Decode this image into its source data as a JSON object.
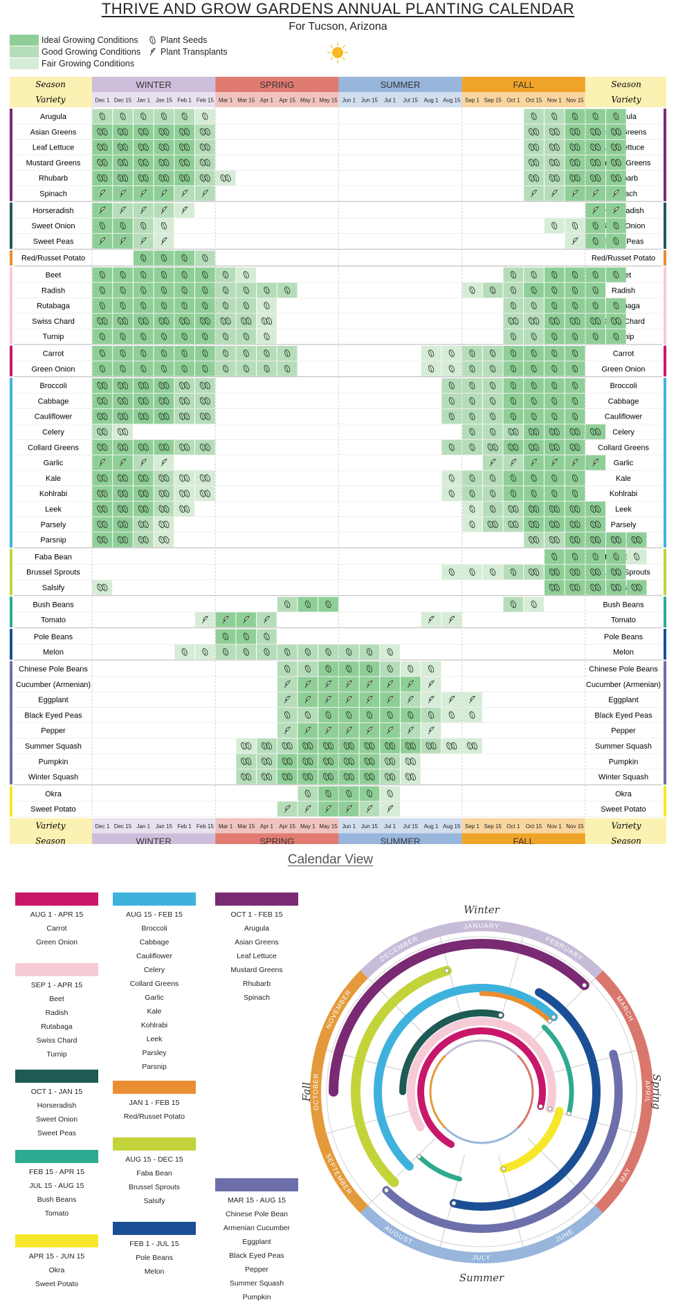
{
  "title": "THRIVE AND GROW GARDENS ANNUAL PLANTING CALENDAR",
  "subtitle": "For Tucson, Arizona",
  "legend": {
    "conditions": [
      {
        "label": "Ideal Growing Conditions",
        "color": "#8fcf97"
      },
      {
        "label": "Good Growing Conditions",
        "color": "#b5ddb9"
      },
      {
        "label": "Fair Growing Conditions",
        "color": "#d7ecd6"
      }
    ],
    "plant_seeds": "Plant Seeds",
    "plant_transplants": "Plant Transplants"
  },
  "header": {
    "season_label": "Season",
    "variety_label": "Variety",
    "seasons": [
      {
        "name": "WINTER",
        "color": "#cdbfdc"
      },
      {
        "name": "SPRING",
        "color": "#e07b70"
      },
      {
        "name": "SUMMER",
        "color": "#98b5dc"
      },
      {
        "name": "FALL",
        "color": "#efa327"
      }
    ],
    "dates": [
      "Dec 1",
      "Dec 15",
      "Jan 1",
      "Jan 15",
      "Feb 1",
      "Feb 15",
      "Mar 1",
      "Mar 15",
      "Apr 1",
      "Apr 15",
      "May 1",
      "May 15",
      "Jun 1",
      "Jun 15",
      "Jul 1",
      "Jul 15",
      "Aug 1",
      "Aug 15",
      "Sep 1",
      "Sep 15",
      "Oct 1",
      "Oct 15",
      "Nov 1",
      "Nov 15"
    ]
  },
  "groups": [
    {
      "color": "#7a2a72",
      "rows": [
        {
          "name": "Arugula",
          "cells": "2s2s2s2s2s3s0000000000000002s2s1s1s1s"
        },
        {
          "name": "Asian Greens",
          "cells": "1d1d1d1d1d2d0000000000000002d2d1d1d1d"
        },
        {
          "name": "Leaf Lettuce",
          "cells": "1d1d1d1d1d2d0000000000000002d2d1d1d1d"
        },
        {
          "name": "Mustard Greens",
          "cells": "1d1d1d1d1d2d0000000000000002d2d1d1d1d"
        },
        {
          "name": "Rhubarb",
          "cells": "1d1d1d1d1d2d3d000000000000002d2d1d1d1d"
        },
        {
          "name": "Spinach",
          "cells": "1t1t1t1t2t2t0000000000000002t2t1t1t1t"
        }
      ]
    },
    {
      "color": "#1f5a55",
      "rows": [
        {
          "name": "Horseradish",
          "cells": "1t2t2t2t3t00000000000000000001t1t"
        },
        {
          "name": "Sweet Onion",
          "cells": "1s1s2s3s0000000000000000003s3s1s1s"
        },
        {
          "name": "Sweet Peas",
          "cells": "1t1t2t3t00000000000000000003t1s1s"
        }
      ]
    },
    {
      "color": "#ea8e33",
      "rows": [
        {
          "name": "Red/Russet Potato",
          "cells": "001s1s1s2s000000000000000000"
        }
      ]
    },
    {
      "color": "#f6cbd6",
      "rows": [
        {
          "name": "Beet",
          "cells": "1s1s1s1s1s1s2s3s0000000000002s2s1s1s1s1s"
        },
        {
          "name": "Radish",
          "cells": "1s1s1s1s1s1s2s2s2s2s000000003s2s2s1s1s1s1s"
        },
        {
          "name": "Rutabaga",
          "cells": "1s1s1s1s1s1s2s2s3s000000000002s2s1s1s1s1s"
        },
        {
          "name": "Swiss Chard",
          "cells": "1d1d1d1d1d1d2d2d3d000000000002d2d1d1d1d1d"
        },
        {
          "name": "Turnip",
          "cells": "1s1s1s1s1s1s2s2s3s000000000002s2s1s1s1s1s"
        }
      ]
    },
    {
      "color": "#c8176a",
      "rows": [
        {
          "name": "Carrot",
          "cells": "1s1s1s1s1s1s2s2s2s2s0000003s3s2s2s1s1s1s1s"
        },
        {
          "name": "Green Onion",
          "cells": "1s1s1s1s1s1s2s2s2s2s0000003s3s2s2s1s1s1s1s"
        }
      ]
    },
    {
      "color": "#3eb2dd",
      "rows": [
        {
          "name": "Broccoli",
          "cells": "1d1d1d1d2d2d000000000002s2s2s1s1s1s1s"
        },
        {
          "name": "Cabbage",
          "cells": "1d1d1d1d2d2d000000000002s2s2s1s1s1s1s"
        },
        {
          "name": "Cauliflower",
          "cells": "1d1d1d1d2d2d000000000002s2s2s1s1s1s1s"
        },
        {
          "name": "Celery",
          "cells": "2d3d00000000000000002s2s2d1d1d1d1d"
        },
        {
          "name": "Collard Greens",
          "cells": "1d1d1d1d2d2d000000000002s2s2d1d1d1d1d"
        },
        {
          "name": "Garlic",
          "cells": "1t1t2t3t0000000000000002t2t1t1t1t1t"
        },
        {
          "name": "Kale",
          "cells": "1d1d1d2d3d3d000000000003s2s2s1s1s1s1s"
        },
        {
          "name": "Kohlrabi",
          "cells": "1d1d1d2d3d3d000000000003s2s2s1s1s1s1s"
        },
        {
          "name": "Leek",
          "cells": "1d1d1d2d3d00000000000003s2s2d1d1d1d1d"
        },
        {
          "name": "Parsely",
          "cells": "1d1d2d3d000000000000003s2d2d1d1d1d1d"
        },
        {
          "name": "Parsnip",
          "cells": "1d1d2d3d000000000000000002d2d1d1d1d1d"
        }
      ]
    },
    {
      "color": "#c3d33a",
      "rows": [
        {
          "name": "Faba Bean",
          "cells": "00000000000000000000001s1s1s1s3s"
        },
        {
          "name": "Brussel Sprouts",
          "cells": "000000000000000003s3s3s2s2d1d1d1d1d"
        },
        {
          "name": "Salsify",
          "cells": "3d0000000000000000000001d1d1d1d1d"
        }
      ]
    },
    {
      "color": "#2eaa90",
      "rows": [
        {
          "name": "Bush Beans",
          "cells": "0000000002s1s1s000000002s3s"
        },
        {
          "name": "Tomato",
          "cells": "000003t1t1t2t00000003t3t"
        }
      ]
    },
    {
      "color": "#1b4f95",
      "rows": [
        {
          "name": "Pole Beans",
          "cells": "0000001s1s2s"
        },
        {
          "name": "Melon",
          "cells": "00003s3s2s2s2s2s2s2s2s2s3s"
        }
      ]
    },
    {
      "color": "#6c6fa9",
      "rows": [
        {
          "name": "Chinese Pole Beans",
          "cells": "0000000002s2s1s1s1s2s3s3s"
        },
        {
          "name": "Cucumber (Armenian)",
          "cells": "0000000002t1t1t1t1t1t1t3t"
        },
        {
          "name": "Eggplant",
          "cells": "0000000002t1t1t1t1t1t2t3t3t3t"
        },
        {
          "name": "Black Eyed Peas",
          "cells": "0000000002s2s1s1s1s1s1s2s3s3s"
        },
        {
          "name": "Pepper",
          "cells": "0000000002t1t1t1t1t1t2t3t"
        },
        {
          "name": "Summer Squash",
          "cells": "00000003d2d2d1d1d1d1d1d1d2d3d3d"
        },
        {
          "name": "Pumpkin",
          "cells": "00000002d2d1d1d1d1d1d2d3d"
        },
        {
          "name": "Winter Squash",
          "cells": "00000002d2d1d1d1d1d1d2d3d"
        }
      ]
    },
    {
      "color": "#f7e72a",
      "rows": [
        {
          "name": "Okra",
          "cells": "00000000002s1s1s1s3s"
        },
        {
          "name": "Sweet Potato",
          "cells": "0000000002t2t1t1t2t3t"
        }
      ]
    }
  ],
  "calendar_view": {
    "title": "Calendar View",
    "legend": [
      {
        "color": "#c8176a",
        "ranges": [
          "AUG 1 - APR 15"
        ],
        "items": [
          "Carrot",
          "Green Onion"
        ],
        "col": 0,
        "row": 0
      },
      {
        "color": "#f6cbd6",
        "ranges": [
          "SEP 1 - APR 15"
        ],
        "items": [
          "Beet",
          "Radish",
          "Rutabaga",
          "Swiss Chard",
          "Turnip"
        ],
        "col": 0,
        "row": 1
      },
      {
        "color": "#1f5a55",
        "ranges": [
          "OCT 1 - JAN 15"
        ],
        "items": [
          "Horseradish",
          "Sweet Onion",
          "Sweet Peas"
        ],
        "col": 0,
        "row": 2
      },
      {
        "color": "#2eaa90",
        "ranges": [
          "FEB 15 - APR 15",
          "JUL 15 - AUG 15"
        ],
        "items": [
          "Bush Beans",
          "Tomato"
        ],
        "col": 0,
        "row": 3
      },
      {
        "color": "#f7e72a",
        "ranges": [
          "APR 15 - JUN 15"
        ],
        "items": [
          "Okra",
          "Sweet Potato"
        ],
        "col": 0,
        "row": 4
      },
      {
        "color": "#3eb2dd",
        "ranges": [
          "AUG 15 - FEB 15"
        ],
        "items": [
          "Broccoli",
          "Cabbage",
          "Cauliflower",
          "Celery",
          "Collard Greens",
          "Garlic",
          "Kale",
          "Kohlrabi",
          "Leek",
          "Parsley",
          "Parsnip"
        ],
        "col": 1,
        "row": 0
      },
      {
        "color": "#ea8e33",
        "ranges": [
          "JAN 1 - FEB 15"
        ],
        "items": [
          "Red/Russet Potato"
        ],
        "col": 1,
        "row": 1
      },
      {
        "color": "#c3d33a",
        "ranges": [
          "AUG 15 - DEC 15"
        ],
        "items": [
          "Faba Bean",
          "Brussel Sprouts",
          "Salsify"
        ],
        "col": 1,
        "row": 2
      },
      {
        "color": "#1b4f95",
        "ranges": [
          "FEB 1 - JUL 15"
        ],
        "items": [
          "Pole Beans",
          "Melon"
        ],
        "col": 1,
        "row": 3
      },
      {
        "color": "#7a2a72",
        "ranges": [
          "OCT 1 - FEB 15"
        ],
        "items": [
          "Arugula",
          "Asian Greens",
          "Leaf Lettuce",
          "Mustard Greens",
          "Rhubarb",
          "Spinach"
        ],
        "col": 2,
        "row": 0
      },
      {
        "color": "#6c6fa9",
        "ranges": [
          "MAR 15 - AUG 15"
        ],
        "items": [
          "Chinese Pole Bean",
          "Armenian Cucumber",
          "Eggplant",
          "Black Eyed Peas",
          "Pepper",
          "Summer Squash",
          "Pumpkin"
        ],
        "col": 2,
        "row": 1
      }
    ],
    "wheel": {
      "months": [
        "JANUARY",
        "FEBRUARY",
        "MARCH",
        "APRIL",
        "MAY",
        "JUNE",
        "JULY",
        "AUGUST",
        "SEPTEMBER",
        "OCTOBER",
        "NOVEMBER",
        "DECEMBER"
      ],
      "seasons": [
        {
          "name": "Winter",
          "color": "#c6bcd8"
        },
        {
          "name": "Spring",
          "color": "#d9776c"
        },
        {
          "name": "Summer",
          "color": "#98b5dc"
        },
        {
          "name": "Fall",
          "color": "#e49a3a"
        }
      ],
      "arcs": [
        {
          "color": "#7a2a72",
          "start": "Oct 1",
          "end": "Feb 15"
        },
        {
          "color": "#6c6fa9",
          "start": "Mar 15",
          "end": "Aug 15"
        },
        {
          "color": "#c3d33a",
          "start": "Aug 15",
          "end": "Dec 15"
        },
        {
          "color": "#1b4f95",
          "start": "Feb 1",
          "end": "Jul 15"
        },
        {
          "color": "#3eb2dd",
          "start": "Aug 15",
          "end": "Feb 15"
        },
        {
          "color": "#ea8e33",
          "start": "Jan 1",
          "end": "Feb 15"
        },
        {
          "color": "#2eaa90",
          "start": "Feb 15",
          "end": "Apr 15"
        },
        {
          "color": "#2eaa90",
          "start": "Jul 15",
          "end": "Aug 15"
        },
        {
          "color": "#f7e72a",
          "start": "Apr 15",
          "end": "Jun 15"
        },
        {
          "color": "#1f5a55",
          "start": "Oct 1",
          "end": "Jan 15"
        },
        {
          "color": "#f6cbd6",
          "start": "Sep 1",
          "end": "Apr 15"
        },
        {
          "color": "#c8176a",
          "start": "Aug 1",
          "end": "Apr 15"
        }
      ]
    }
  }
}
